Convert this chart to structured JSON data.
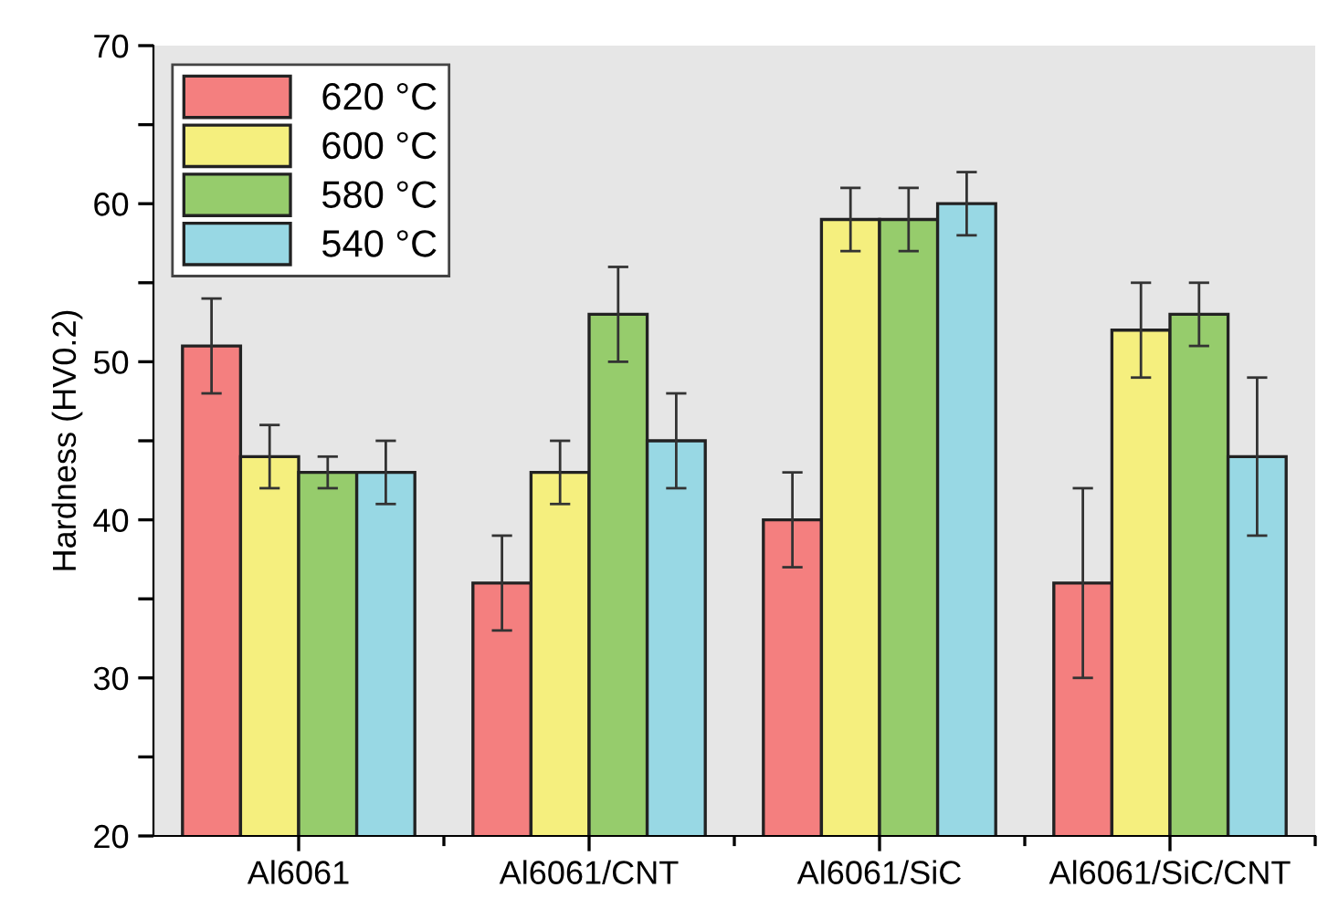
{
  "chart_data": {
    "type": "bar",
    "ylabel": "Hardness (HV0.2)",
    "categories": [
      "Al6061",
      "Al6061/CNT",
      "Al6061/SiC",
      "Al6061/SiC/CNT"
    ],
    "series": [
      {
        "name": "620 °C",
        "color": "#f47f7f",
        "values": [
          51,
          36,
          40,
          36
        ],
        "errors": [
          3,
          3,
          3,
          6
        ]
      },
      {
        "name": "600 °C",
        "color": "#f5ef7e",
        "values": [
          44,
          43,
          59,
          52
        ],
        "errors": [
          2,
          2,
          2,
          3
        ]
      },
      {
        "name": "580 °C",
        "color": "#96cc6c",
        "values": [
          43,
          53,
          59,
          53
        ],
        "errors": [
          1,
          3,
          2,
          2
        ]
      },
      {
        "name": "540 °C",
        "color": "#98d8e4",
        "values": [
          43,
          45,
          60,
          44
        ],
        "errors": [
          2,
          3,
          2,
          5
        ]
      }
    ],
    "ylim": [
      20,
      70
    ],
    "yticks": [
      20,
      {
        "value": 25,
        "label": null
      },
      30,
      {
        "value": 35,
        "label": null
      },
      40,
      {
        "value": 45,
        "label": null
      },
      50,
      {
        "value": 55,
        "label": null
      },
      60,
      {
        "value": 65,
        "label": null
      },
      70
    ],
    "grid": false,
    "legend": "top left"
  }
}
